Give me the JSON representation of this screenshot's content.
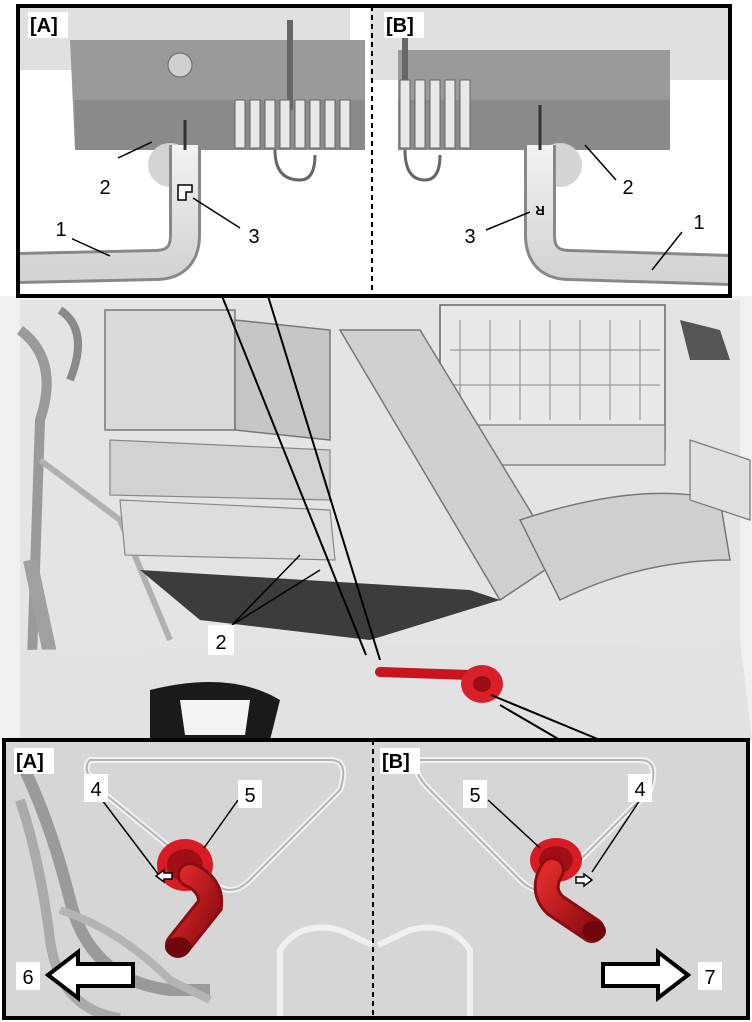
{
  "top_panels": {
    "left_label": "[A]",
    "right_label": "[B]",
    "left_callouts": [
      "1",
      "2",
      "3"
    ],
    "right_callouts": [
      "1",
      "2",
      "3"
    ]
  },
  "middle": {
    "callout": "2"
  },
  "bottom_panels": {
    "left_label": "[A]",
    "right_label": "[B]",
    "left_callouts": [
      "4",
      "5",
      "6"
    ],
    "right_callouts": [
      "5",
      "4",
      "7"
    ]
  },
  "colors": {
    "outline": "#000000",
    "grey_light": "#e6e6e6",
    "grey_mid": "#a8a8a8",
    "grey_dark": "#707070",
    "red": "#c8141e"
  }
}
